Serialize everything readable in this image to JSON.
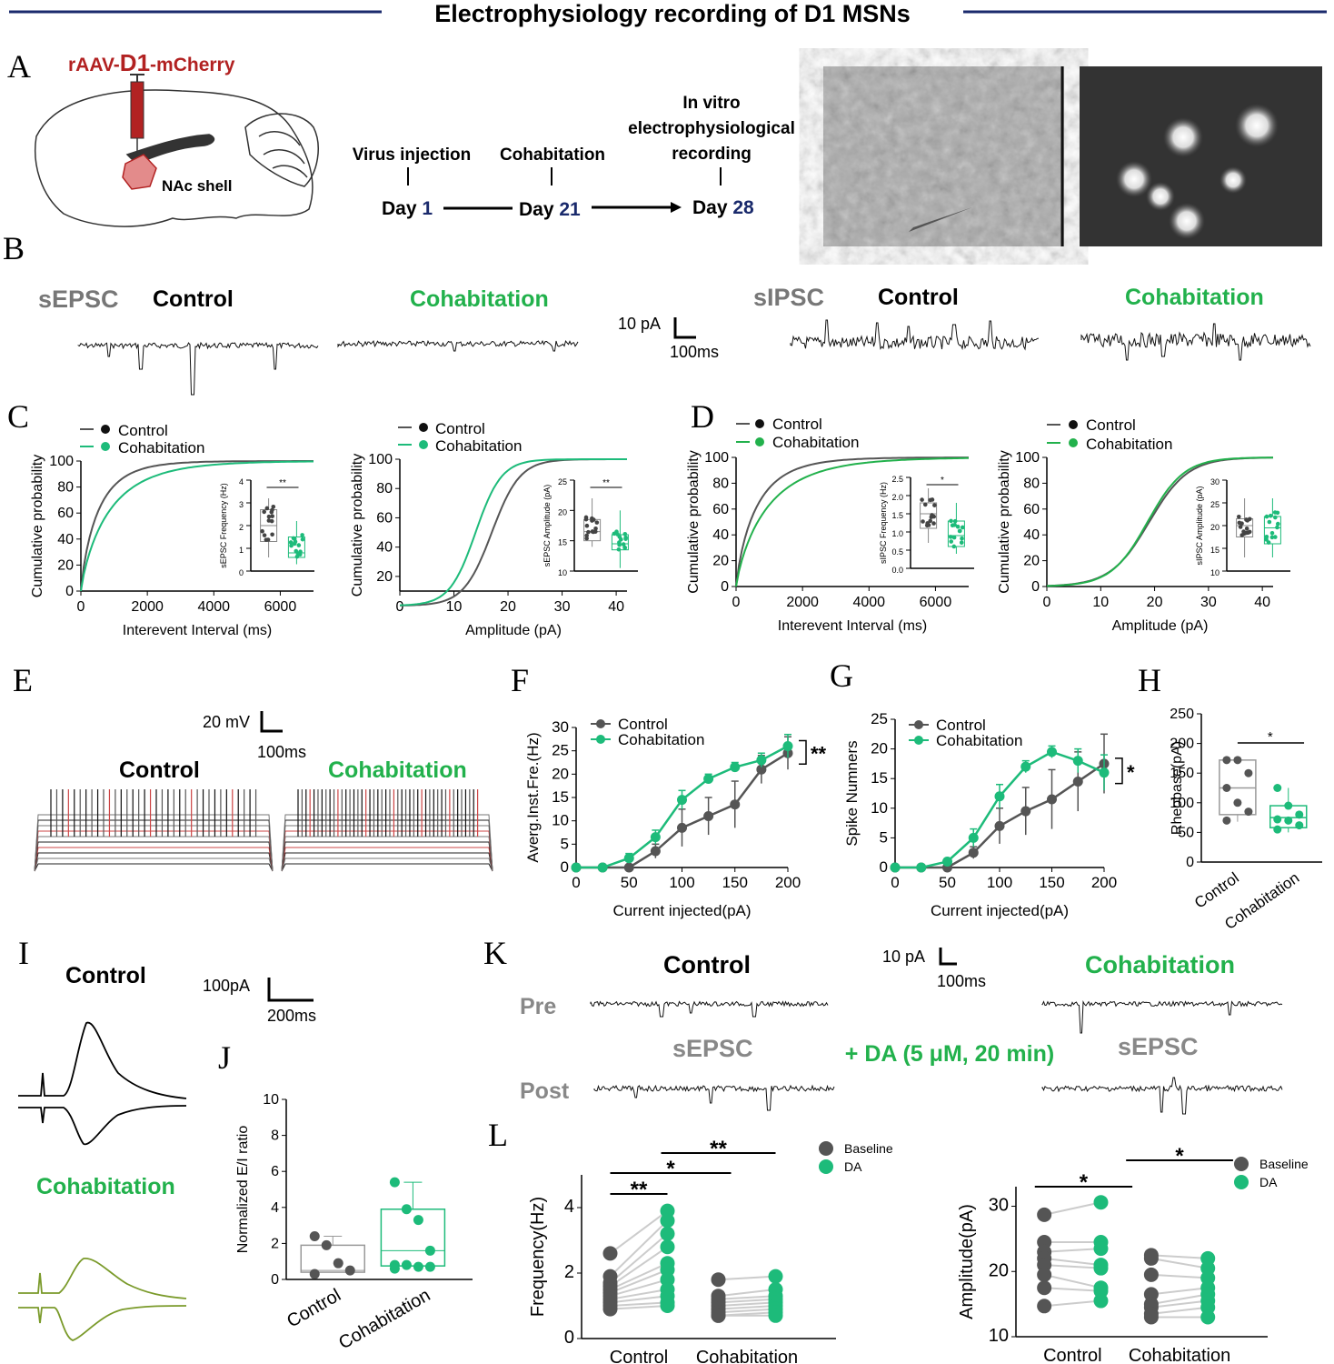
{
  "title": "Electrophysiology recording of D1 MSNs",
  "colors": {
    "control": "#555555",
    "cohab": "#1dbb7a",
    "cohab_trace": "#7a9a2a",
    "virus": "#b22222",
    "day": "#1a2a6c",
    "cohab_text": "#22b14c"
  },
  "panels": {
    "A": "A",
    "B": "B",
    "C": "C",
    "D": "D",
    "E": "E",
    "F": "F",
    "G": "G",
    "H": "H",
    "I": "I",
    "J": "J",
    "K": "K",
    "L": "L"
  },
  "A": {
    "virus_prefix": "rAAV-",
    "virus_gene": "D1",
    "virus_suffix": "-mCherry",
    "region": "NAc shell",
    "timeline": [
      {
        "event": "Virus injection",
        "day_label": "Day",
        "day_num": "1"
      },
      {
        "event": "Cohabitation",
        "day_label": "Day",
        "day_num": "21"
      },
      {
        "event_lines": [
          "In vitro",
          "electrophysiological",
          "recording"
        ],
        "day_label": "Day",
        "day_num": "28"
      }
    ]
  },
  "B": {
    "sEPSC": "sEPSC",
    "sIPSC": "sIPSC",
    "control": "Control",
    "cohab": "Cohabitation",
    "scale_y": "10 pA",
    "scale_x": "100ms"
  },
  "legend": {
    "control": "Control",
    "cohab": "Cohabitation",
    "baseline": "Baseline",
    "da": "DA"
  },
  "C": {
    "left": {
      "xlabel": "Interevent Interval (ms)",
      "ylabel": "Cumulative probability",
      "xticks": [
        "0",
        "2000",
        "4000",
        "6000"
      ],
      "yticks": [
        "0",
        "20",
        "40",
        "60",
        "80",
        "100"
      ],
      "inset": {
        "ylabel": "sEPSC Frequency (Hz)",
        "yticks": [
          "0",
          "1",
          "2",
          "3",
          "4"
        ],
        "sig": "**"
      }
    },
    "right": {
      "xlabel": "Amplitude (pA)",
      "ylabel": "Cumulative probability",
      "xticks": [
        "0",
        "10",
        "20",
        "30",
        "40"
      ],
      "yticks": [
        "20",
        "40",
        "60",
        "80",
        "100"
      ],
      "inset": {
        "ylabel": "sEPSC Amplitude (pA)",
        "yticks": [
          "10",
          "15",
          "20",
          "25"
        ],
        "sig": "**"
      }
    }
  },
  "D": {
    "left": {
      "xlabel": "Interevent Interval (ms)",
      "ylabel": "Cumulative probability",
      "xticks": [
        "0",
        "2000",
        "4000",
        "6000"
      ],
      "yticks": [
        "0",
        "20",
        "40",
        "60",
        "80",
        "100"
      ],
      "inset": {
        "ylabel": "sIPSC Frequency (Hz)",
        "yticks": [
          "0.0",
          "0.5",
          "1.0",
          "1.5",
          "2.0",
          "2.5"
        ],
        "sig": "*"
      }
    },
    "right": {
      "xlabel": "Amplitude (pA)",
      "ylabel": "Cumulative probability",
      "xticks": [
        "0",
        "10",
        "20",
        "30",
        "40"
      ],
      "yticks": [
        "0",
        "20",
        "40",
        "60",
        "80",
        "100"
      ],
      "inset": {
        "ylabel": "sIPSC Amplitude (pA)",
        "yticks": [
          "10",
          "15",
          "20",
          "25",
          "30"
        ]
      }
    }
  },
  "E": {
    "control": "Control",
    "cohab": "Cohabitation",
    "scale_y": "20 mV",
    "scale_x": "100ms"
  },
  "F": {
    "ylabel": "Averg.Inst.Fre.(Hz)",
    "xlabel": "Current injected(pA)",
    "sig": "**"
  },
  "G": {
    "ylabel": "Spike Numners",
    "xlabel": "Current injected(pA)",
    "sig": "*"
  },
  "H": {
    "ylabel": "Rheobase(pA)",
    "categories": [
      "Control",
      "Cohabitation"
    ],
    "yticks": [
      "0",
      "50",
      "100",
      "150",
      "200",
      "250"
    ],
    "sig": "*"
  },
  "I": {
    "control": "Control",
    "cohab": "Cohabitation",
    "scale_y": "100pA",
    "scale_x": "200ms"
  },
  "J": {
    "ylabel": "Normalized E/I ratio",
    "categories": [
      "Control",
      "Cohabitation"
    ],
    "yticks": [
      "0",
      "2",
      "4",
      "6",
      "8",
      "10"
    ]
  },
  "K": {
    "control": "Control",
    "cohab": "Cohabitation",
    "pre": "Pre",
    "post": "Post",
    "sEPSC": "sEPSC",
    "da": "+ DA (5 μM, 20 min)",
    "scale_y": "10 pA",
    "scale_x": "100ms"
  },
  "L": {
    "left": {
      "ylabel": "Frequency(Hz)",
      "categories": [
        "Control",
        "Cohabitation"
      ],
      "yticks": [
        "0",
        "2",
        "4"
      ],
      "sigs": [
        "**",
        "*",
        "**"
      ]
    },
    "right": {
      "ylabel": "Amplitude(pA)",
      "categories": [
        "Control",
        "Cohabitation"
      ],
      "yticks": [
        "10",
        "20",
        "30"
      ],
      "sigs": [
        "*",
        "*"
      ]
    }
  },
  "chart_data": [
    {
      "id": "F",
      "type": "line",
      "x": [
        0,
        25,
        50,
        75,
        100,
        125,
        150,
        175,
        200
      ],
      "xlim": [
        0,
        200
      ],
      "ylim": [
        0,
        30
      ],
      "xticks": [
        "0",
        "50",
        "100",
        "150",
        "200"
      ],
      "yticks": [
        "0",
        "5",
        "10",
        "15",
        "20",
        "25",
        "30"
      ],
      "series": [
        {
          "name": "Control",
          "values": [
            0,
            0,
            0,
            3.5,
            8.5,
            11,
            13.5,
            21,
            24.5
          ],
          "err": [
            0,
            0,
            0,
            1.5,
            4,
            4,
            5,
            3,
            3.5
          ]
        },
        {
          "name": "Cohabitation",
          "values": [
            0,
            0,
            2,
            6.5,
            14.5,
            19,
            21.5,
            23,
            26
          ],
          "err": [
            0,
            0,
            1,
            1.5,
            2,
            1,
            1,
            1.5,
            2.5
          ]
        }
      ]
    },
    {
      "id": "G",
      "type": "line",
      "x": [
        0,
        25,
        50,
        75,
        100,
        125,
        150,
        175,
        200
      ],
      "xlim": [
        0,
        200
      ],
      "ylim": [
        0,
        25
      ],
      "xticks": [
        "0",
        "50",
        "100",
        "150",
        "200"
      ],
      "yticks": [
        "0",
        "5",
        "10",
        "15",
        "20",
        "25"
      ],
      "series": [
        {
          "name": "Control",
          "values": [
            0,
            0,
            0,
            2.5,
            7,
            9.5,
            11.5,
            14.5,
            17.5
          ],
          "err": [
            0,
            0,
            0,
            1,
            3,
            4,
            5,
            5,
            5
          ]
        },
        {
          "name": "Cohabitation",
          "values": [
            0,
            0,
            1,
            5,
            12,
            17,
            19.5,
            18,
            16
          ],
          "err": [
            0,
            0,
            0.5,
            1.5,
            2,
            1,
            1,
            2,
            3
          ]
        }
      ]
    }
  ]
}
